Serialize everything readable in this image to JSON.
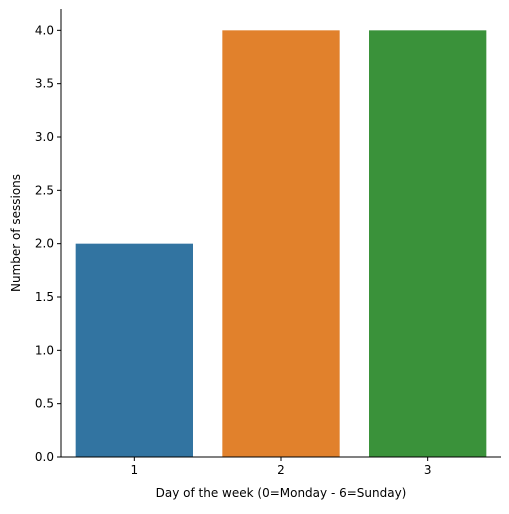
{
  "chart_data": {
    "type": "bar",
    "categories": [
      "1",
      "2",
      "3"
    ],
    "values": [
      2,
      4,
      4
    ],
    "colors": [
      "#3274a1",
      "#e1812c",
      "#3a923a"
    ],
    "xlabel": "Day of the week (0=Monday - 6=Sunday)",
    "ylabel": "Number of sessions",
    "ylim": [
      0,
      4.2
    ],
    "yticks": [
      0.0,
      0.5,
      1.0,
      1.5,
      2.0,
      2.5,
      3.0,
      3.5,
      4.0
    ],
    "ytick_labels": [
      "0.0",
      "0.5",
      "1.0",
      "1.5",
      "2.0",
      "2.5",
      "3.0",
      "3.5",
      "4.0"
    ],
    "grid": false,
    "legend": "none"
  }
}
